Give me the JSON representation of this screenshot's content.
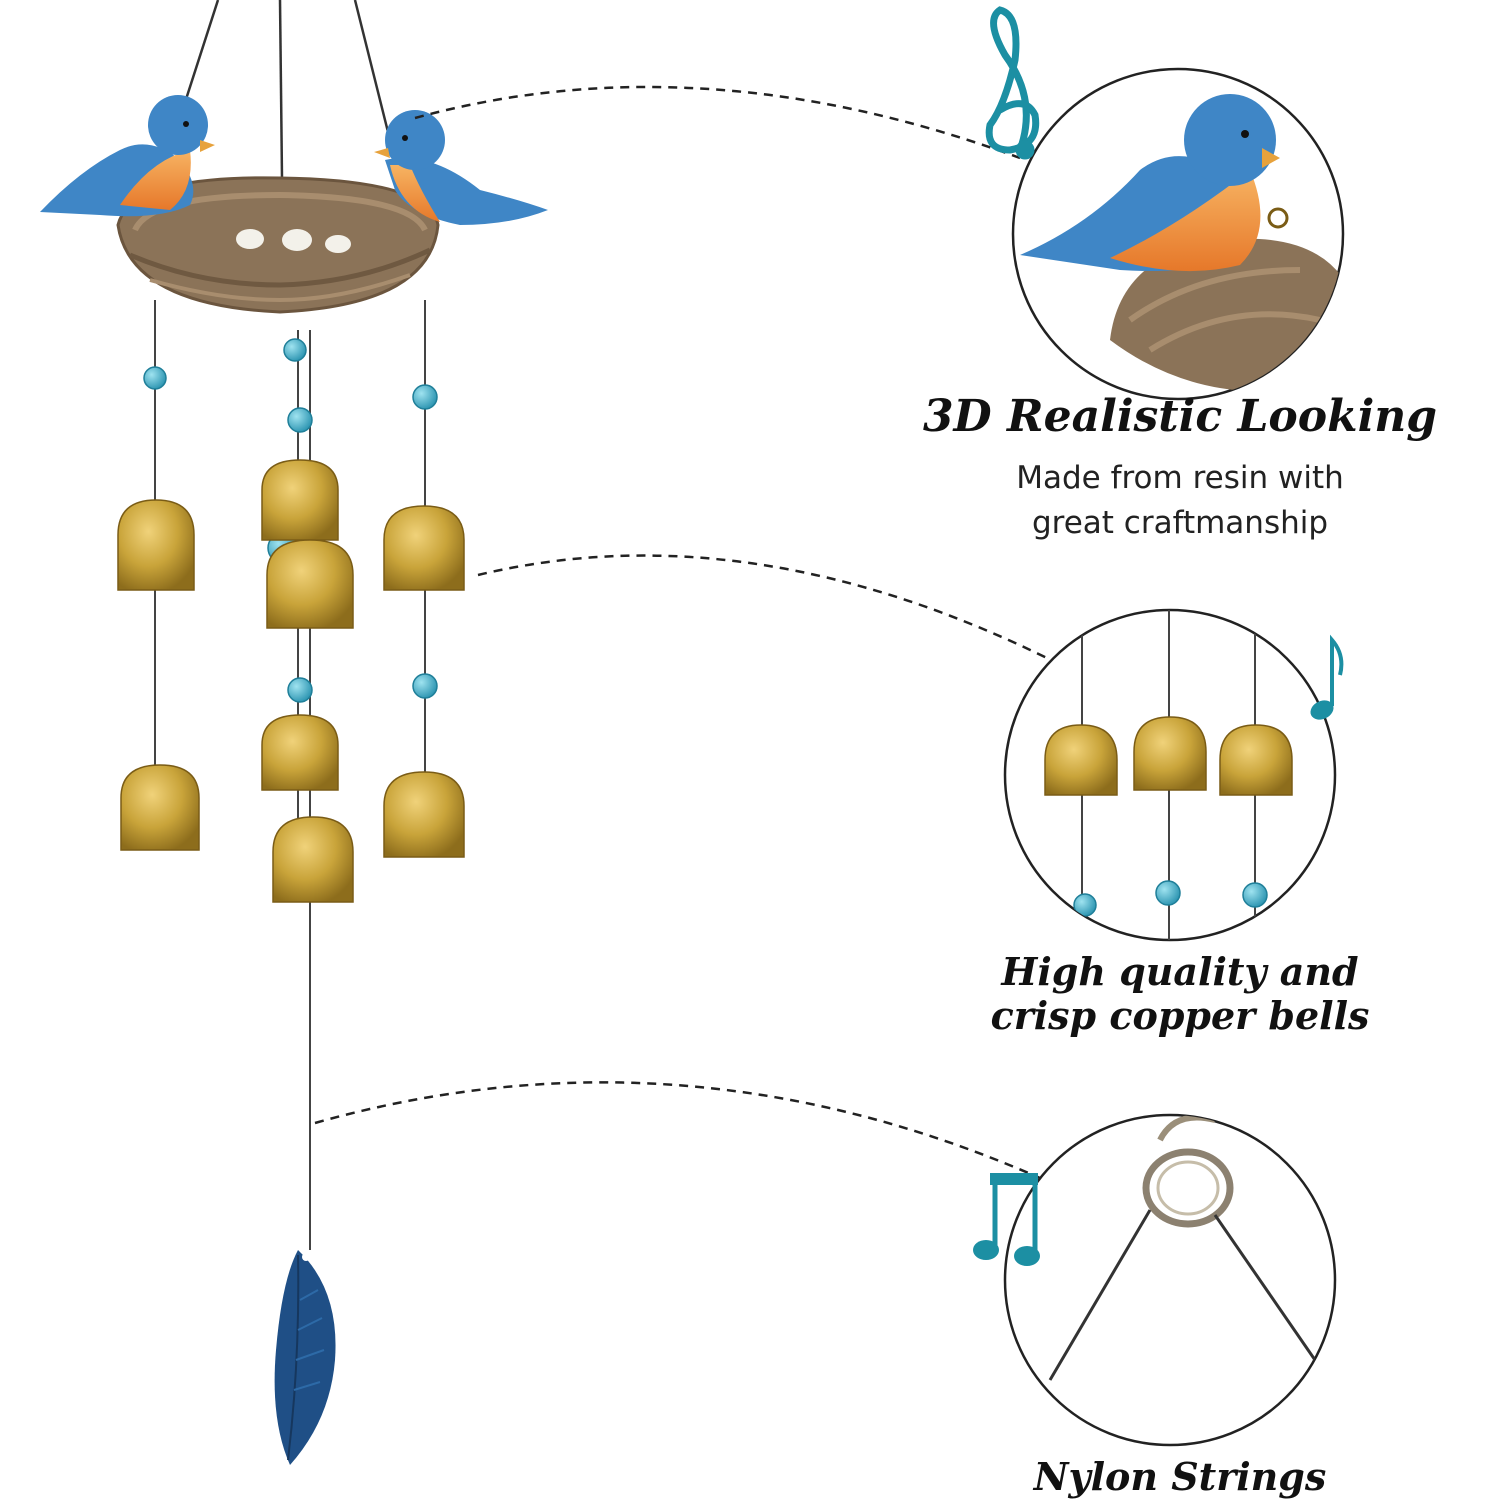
{
  "features": [
    {
      "title": "3D Realistic Looking",
      "description_lines": [
        "Made from resin with",
        "great craftmanship"
      ]
    },
    {
      "title_lines": [
        "High quality and",
        "crisp copper bells"
      ]
    },
    {
      "title": "Nylon Strings"
    }
  ],
  "colors": {
    "bird_blue": "#3f86c6",
    "bird_orange": "#f2923a",
    "nest_brown": "#8b7358",
    "bell_gold": "#c9a43a",
    "bead_teal": "#33a7c2",
    "feather_blue": "#1f4f86",
    "music_note_teal": "#1c8fa3"
  },
  "icons": [
    "treble-clef-icon",
    "eighth-note-icon",
    "beamed-notes-icon"
  ]
}
